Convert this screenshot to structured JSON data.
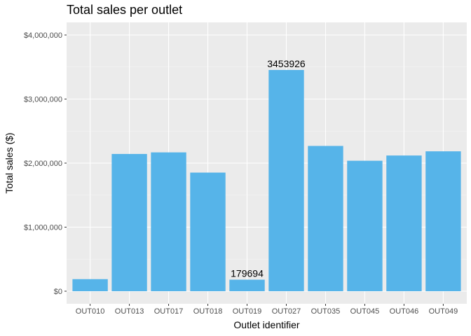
{
  "chart_data": {
    "type": "bar",
    "title": "Total sales per outlet",
    "xlabel": "Outlet identifier",
    "ylabel": "Total sales ($)",
    "categories": [
      "OUT010",
      "OUT013",
      "OUT017",
      "OUT018",
      "OUT019",
      "OUT027",
      "OUT035",
      "OUT045",
      "OUT046",
      "OUT049"
    ],
    "values": [
      188340,
      2142664,
      2167465,
      1851823,
      179694,
      3453926,
      2268123,
      2036725,
      2118395,
      2183970
    ],
    "ylim": [
      0,
      4000000
    ],
    "yticks": [
      0,
      1000000,
      2000000,
      3000000,
      4000000
    ],
    "ytick_labels": [
      "$0",
      "$1,000,000",
      "$2,000,000",
      "$3,000,000",
      "$4,000,000"
    ],
    "data_labels": [
      {
        "category": "OUT019",
        "text": "179694"
      },
      {
        "category": "OUT027",
        "text": "3453926"
      }
    ],
    "grid": true,
    "colors": {
      "bar": "#56B4E9",
      "panel": "#EBEBEB",
      "grid_major": "#FFFFFF",
      "grid_minor": "#F5F5F5",
      "tick_label": "#4D4D4D"
    }
  }
}
